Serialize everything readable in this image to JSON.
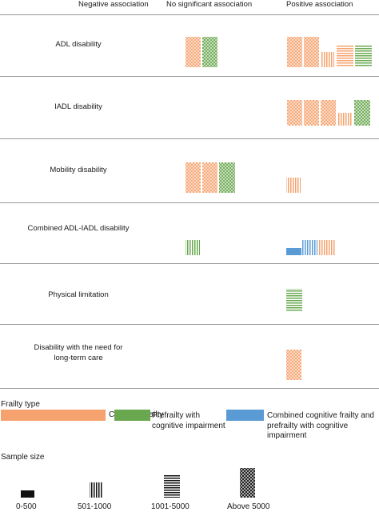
{
  "headers": {
    "negative": "Negative association",
    "no_significant": "No significant association",
    "positive": "Positive association"
  },
  "rows": [
    {
      "label": "ADL disability"
    },
    {
      "label": "IADL disability"
    },
    {
      "label": "Mobility disability"
    },
    {
      "label": "Combined ADL-IADL disability"
    },
    {
      "label": "Physical limitation"
    },
    {
      "label": "Disability with the need for long-term care"
    }
  ],
  "legend": {
    "frailty_title": "Frailty type",
    "types": [
      {
        "label": "Cognitive frailty",
        "color": "#f5a26e"
      },
      {
        "label": "Prefrailty with cognitive impairment",
        "color": "#6aa84f"
      },
      {
        "label": "Combined cognitive frailty and prefrailty with cognitive impairment",
        "color": "#5b9bd5"
      }
    ],
    "sample_title": "Sample size",
    "samples": [
      {
        "label": "0-500",
        "pattern": "solid"
      },
      {
        "label": "501-1000",
        "pattern": "vertical"
      },
      {
        "label": "1001-5000",
        "pattern": "horizontal"
      },
      {
        "label": "Above 5000",
        "pattern": "crosshatch"
      }
    ]
  },
  "colors": {
    "cognitive": "#f5a26e",
    "prefrailty": "#6aa84f",
    "combined": "#5b9bd5",
    "divider": "#9a9a9a"
  }
}
